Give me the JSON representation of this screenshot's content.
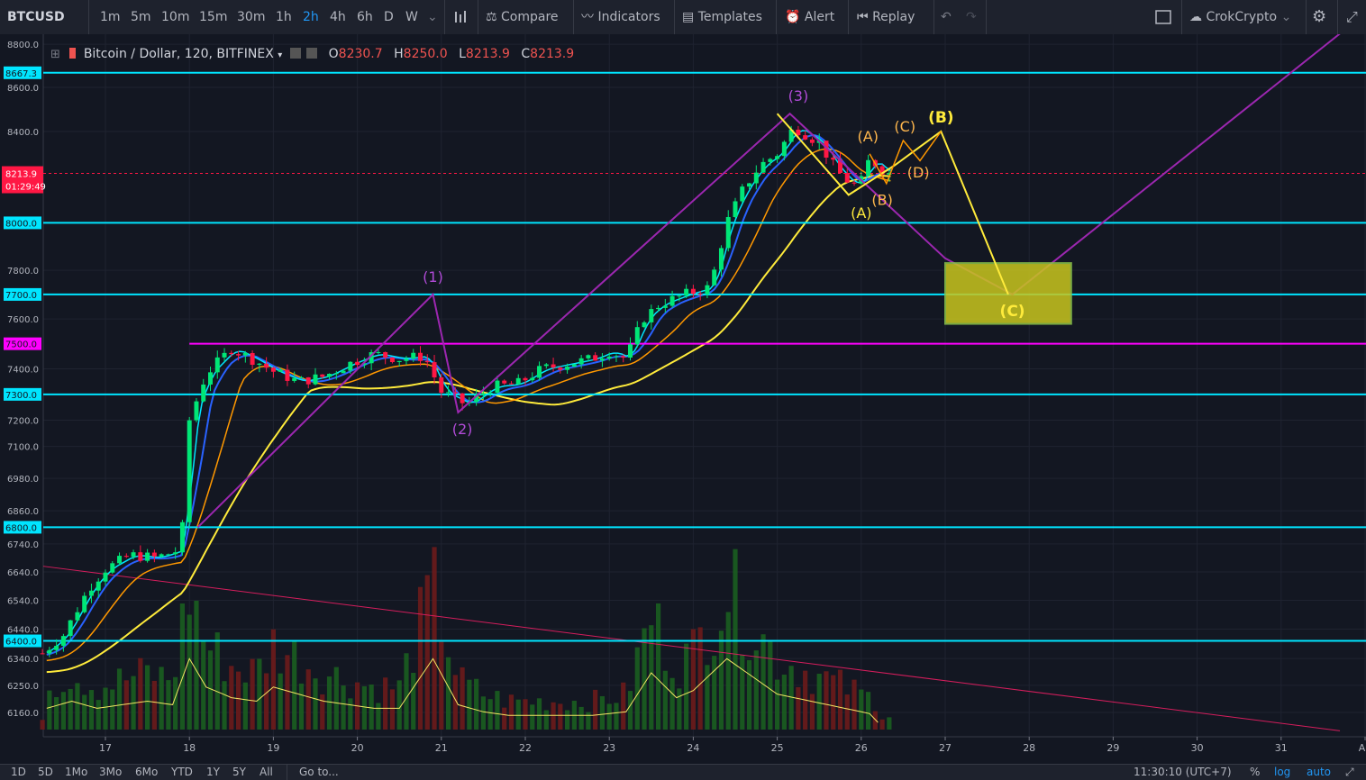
{
  "toolbar": {
    "symbol": "BTCUSD",
    "intervals": [
      "1m",
      "5m",
      "10m",
      "15m",
      "30m",
      "1h",
      "2h",
      "4h",
      "6h",
      "D",
      "W"
    ],
    "active_interval": "2h",
    "compare": "Compare",
    "indicators": "Indicators",
    "templates": "Templates",
    "alert": "Alert",
    "replay": "Replay",
    "user": "CrokCrypto"
  },
  "legend": {
    "title": "Bitcoin / Dollar, 120, BITFINEX",
    "o_label": "O",
    "o": "8230.7",
    "h_label": "H",
    "h": "8250.0",
    "l_label": "L",
    "l": "8213.9",
    "c_label": "C",
    "c": "8213.9"
  },
  "bottom": {
    "ranges": [
      "1D",
      "5D",
      "1Mo",
      "3Mo",
      "6Mo",
      "YTD",
      "1Y",
      "5Y",
      "All"
    ],
    "goto": "Go to...",
    "time": "11:30:10 (UTC+7)",
    "percent": "%",
    "log": "log",
    "auto": "auto"
  },
  "colors": {
    "up": "#00e676",
    "down": "#ff1744",
    "level": "#00e5ff",
    "magenta": "#ff00ff",
    "wave": "#9c27b0",
    "yellow": "#ffeb3b",
    "orange": "#ff9800",
    "blue": "#2962ff",
    "cyan_ma": "#00e5ff"
  },
  "chart_data": {
    "type": "candlestick",
    "symbol": "Bitcoin / Dollar",
    "exchange": "BITFINEX",
    "interval": "120",
    "x_ticks": [
      "17",
      "18",
      "19",
      "20",
      "21",
      "22",
      "23",
      "24",
      "25",
      "26",
      "27",
      "28",
      "29",
      "30",
      "31",
      "Au"
    ],
    "y_ticks": [
      8800.0,
      8600.0,
      8400.0,
      8000.0,
      7800.0,
      7600.0,
      7400.0,
      7200.0,
      7100.0,
      6980.0,
      6860.0,
      6740.0,
      6640.0,
      6540.0,
      6440.0,
      6340.0,
      6250.0,
      6160.0
    ],
    "y_scale": "log",
    "levels": [
      {
        "value": 8667.3,
        "label": "8667.3",
        "color": "#00e5ff"
      },
      {
        "value": 8000.0,
        "label": "8000.0",
        "color": "#00e5ff"
      },
      {
        "value": 7700.0,
        "label": "7700.0",
        "color": "#00e5ff"
      },
      {
        "value": 7500.0,
        "label": "7500.0",
        "color": "#ff00ff"
      },
      {
        "value": 7300.0,
        "label": "7300.0",
        "color": "#00e5ff"
      },
      {
        "value": 6800.0,
        "label": "6800.0",
        "color": "#00e5ff"
      },
      {
        "value": 6400.0,
        "label": "6400.0",
        "color": "#00e5ff"
      }
    ],
    "last_price": {
      "value": 8213.9,
      "label": "8213.9",
      "countdown": "01:29:49"
    },
    "wave_labels": [
      "(1)",
      "(2)",
      "(3)"
    ],
    "correction_labels": [
      "(A)",
      "(B)",
      "(C)",
      "(D)"
    ],
    "projection_labels": [
      "(B)",
      "(C)"
    ],
    "close_path": [
      [
        16.2,
        6345
      ],
      [
        16.5,
        6420
      ],
      [
        16.8,
        6580
      ],
      [
        17.0,
        6650
      ],
      [
        17.3,
        6700
      ],
      [
        17.6,
        6690
      ],
      [
        17.9,
        6720
      ],
      [
        18.0,
        7200
      ],
      [
        18.2,
        7380
      ],
      [
        18.5,
        7480
      ],
      [
        18.8,
        7430
      ],
      [
        19.0,
        7390
      ],
      [
        19.3,
        7350
      ],
      [
        19.6,
        7370
      ],
      [
        19.9,
        7420
      ],
      [
        20.2,
        7460
      ],
      [
        20.5,
        7440
      ],
      [
        20.8,
        7450
      ],
      [
        21.0,
        7310
      ],
      [
        21.3,
        7260
      ],
      [
        21.6,
        7330
      ],
      [
        21.9,
        7340
      ],
      [
        22.2,
        7400
      ],
      [
        22.5,
        7420
      ],
      [
        22.8,
        7440
      ],
      [
        23.0,
        7470
      ],
      [
        23.2,
        7440
      ],
      [
        23.4,
        7600
      ],
      [
        23.6,
        7660
      ],
      [
        23.9,
        7700
      ],
      [
        24.2,
        7730
      ],
      [
        24.4,
        8000
      ],
      [
        24.6,
        8150
      ],
      [
        24.8,
        8250
      ],
      [
        25.0,
        8300
      ],
      [
        25.2,
        8420
      ],
      [
        25.5,
        8350
      ],
      [
        25.7,
        8230
      ],
      [
        25.9,
        8160
      ],
      [
        26.0,
        8180
      ],
      [
        26.1,
        8280
      ],
      [
        26.3,
        8214
      ]
    ],
    "volume": [
      [
        16.3,
        0.3
      ],
      [
        16.6,
        0.4
      ],
      [
        16.9,
        0.3
      ],
      [
        17.2,
        0.35
      ],
      [
        17.5,
        0.4
      ],
      [
        17.8,
        0.35
      ],
      [
        18.0,
        1.0
      ],
      [
        18.2,
        0.6
      ],
      [
        18.5,
        0.45
      ],
      [
        18.8,
        0.4
      ],
      [
        19.0,
        0.6
      ],
      [
        19.3,
        0.5
      ],
      [
        19.6,
        0.4
      ],
      [
        19.9,
        0.35
      ],
      [
        20.2,
        0.3
      ],
      [
        20.5,
        0.3
      ],
      [
        20.9,
        1.0
      ],
      [
        21.2,
        0.35
      ],
      [
        21.5,
        0.25
      ],
      [
        21.8,
        0.2
      ],
      [
        22.2,
        0.2
      ],
      [
        22.5,
        0.2
      ],
      [
        22.8,
        0.2
      ],
      [
        23.2,
        0.25
      ],
      [
        23.5,
        0.8
      ],
      [
        23.8,
        0.45
      ],
      [
        24.0,
        0.55
      ],
      [
        24.4,
        1.0
      ],
      [
        24.7,
        0.75
      ],
      [
        25.0,
        0.5
      ],
      [
        25.4,
        0.4
      ],
      [
        25.8,
        0.3
      ],
      [
        26.2,
        0.2
      ]
    ]
  }
}
